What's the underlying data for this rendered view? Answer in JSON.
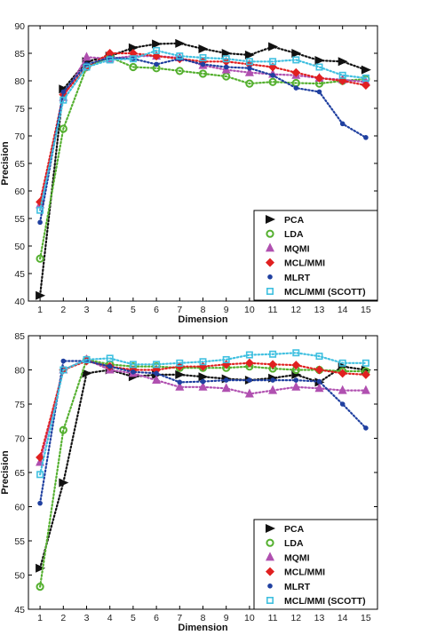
{
  "chart_data": [
    {
      "type": "line",
      "xlabel": "Dimension",
      "ylabel": "Precision",
      "xlim": [
        0.5,
        15.5
      ],
      "ylim": [
        40,
        90
      ],
      "x_ticks": [
        1,
        2,
        3,
        4,
        5,
        6,
        7,
        8,
        9,
        10,
        11,
        12,
        13,
        14,
        15
      ],
      "y_ticks": [
        40,
        45,
        50,
        55,
        60,
        65,
        70,
        75,
        80,
        85,
        90
      ],
      "grid": false,
      "legend_position": "bottom-right",
      "x": [
        1,
        2,
        3,
        4,
        5,
        6,
        7,
        8,
        9,
        10,
        11,
        12,
        13,
        14,
        15
      ],
      "series": [
        {
          "name": "PCA",
          "marker": "triangle-right",
          "color": "#111111",
          "values": [
            41,
            78.5,
            83.5,
            84.5,
            86,
            86.7,
            86.8,
            85.8,
            85,
            84.7,
            86.2,
            85,
            83.7,
            83.5,
            82
          ]
        },
        {
          "name": "LDA",
          "marker": "circle-open",
          "color": "#55b030",
          "values": [
            47.7,
            71.3,
            82.5,
            84.3,
            82.5,
            82.3,
            81.8,
            81.3,
            80.8,
            79.5,
            79.8,
            79.6,
            79.5,
            80,
            80.3
          ]
        },
        {
          "name": "MQMI",
          "marker": "triangle-up",
          "color": "#b050b0",
          "values": [
            57.5,
            77,
            84.3,
            84,
            84.5,
            84.5,
            84.2,
            82.8,
            82,
            81.5,
            81.2,
            81,
            80.5,
            80.2,
            79.8
          ]
        },
        {
          "name": "MCL/MMI",
          "marker": "diamond",
          "color": "#e02020",
          "values": [
            58,
            77.5,
            82.5,
            85,
            85,
            84.5,
            84,
            83.5,
            83.5,
            83,
            82.5,
            81.5,
            80.5,
            80,
            79.2
          ]
        },
        {
          "name": "MLRT",
          "marker": "dot",
          "color": "#2040a0",
          "values": [
            54.3,
            78,
            83,
            84.2,
            84,
            83,
            84,
            83,
            82.5,
            82.3,
            81,
            78.7,
            78,
            72.2,
            69.7
          ]
        },
        {
          "name": "MCL/MMI (SCOTT)",
          "marker": "square-open",
          "color": "#40c0e0",
          "values": [
            56.5,
            76.5,
            82.5,
            83.8,
            84,
            85.5,
            84.5,
            84.2,
            84,
            83.5,
            83.5,
            83.8,
            82.5,
            81,
            80.5
          ]
        }
      ]
    },
    {
      "type": "line",
      "xlabel": "Dimension",
      "ylabel": "Precision",
      "xlim": [
        0.5,
        15.5
      ],
      "ylim": [
        45,
        85
      ],
      "x_ticks": [
        1,
        2,
        3,
        4,
        5,
        6,
        7,
        8,
        9,
        10,
        11,
        12,
        13,
        14,
        15
      ],
      "y_ticks": [
        45,
        50,
        55,
        60,
        65,
        70,
        75,
        80,
        85
      ],
      "grid": false,
      "legend_position": "bottom-right",
      "x": [
        1,
        2,
        3,
        4,
        5,
        6,
        7,
        8,
        9,
        10,
        11,
        12,
        13,
        14,
        15
      ],
      "series": [
        {
          "name": "PCA",
          "marker": "triangle-right",
          "color": "#111111",
          "values": [
            51,
            63.5,
            79.5,
            80,
            79,
            79.3,
            79.3,
            79,
            78.7,
            78.5,
            78.8,
            79.3,
            78.2,
            80.5,
            80
          ]
        },
        {
          "name": "LDA",
          "marker": "circle-open",
          "color": "#55b030",
          "values": [
            48.3,
            71.2,
            81.5,
            80.8,
            80.5,
            80.5,
            80.3,
            80.3,
            80.3,
            80.5,
            80.2,
            80,
            80,
            79.8,
            79.8
          ]
        },
        {
          "name": "MQMI",
          "marker": "triangle-up",
          "color": "#b050b0",
          "values": [
            66.5,
            80,
            81.5,
            80,
            79.5,
            78.5,
            77.5,
            77.5,
            77.3,
            76.5,
            77,
            77.5,
            77.3,
            77,
            77
          ]
        },
        {
          "name": "MCL/MMI",
          "marker": "diamond",
          "color": "#e02020",
          "values": [
            67.2,
            80,
            81.3,
            80.5,
            80,
            80,
            80.5,
            80.5,
            80.8,
            81,
            80.8,
            80.7,
            80,
            79.5,
            79.3
          ]
        },
        {
          "name": "MLRT",
          "marker": "dot",
          "color": "#2040a0",
          "values": [
            60.5,
            81.3,
            81.3,
            80.5,
            79.7,
            79.5,
            78.2,
            78.3,
            78.5,
            78.5,
            78.5,
            78.5,
            78.3,
            75,
            71.5
          ]
        },
        {
          "name": "MCL/MMI (SCOTT)",
          "marker": "square-open",
          "color": "#40c0e0",
          "values": [
            64.7,
            80,
            81.5,
            81.7,
            80.8,
            80.8,
            81,
            81.2,
            81.5,
            82.2,
            82.3,
            82.5,
            82,
            81,
            81
          ]
        }
      ]
    }
  ]
}
